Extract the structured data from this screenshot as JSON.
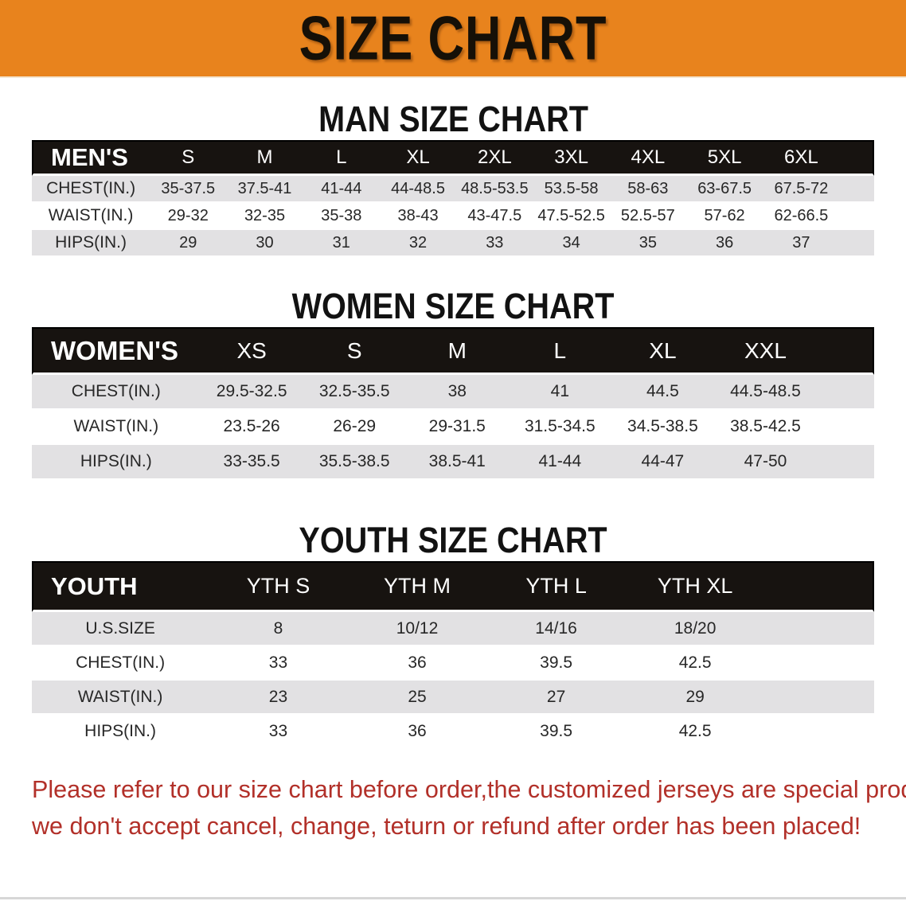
{
  "banner": {
    "title": "SIZE CHART",
    "bg_color": "#e8831d"
  },
  "colors": {
    "table_header_bg": "#171310",
    "row_stripe_gray": "#e2e1e3",
    "note_red": "#b23029"
  },
  "sections": [
    {
      "heading": "MAN SIZE CHART",
      "table": {
        "header_label": "MEN'S",
        "columns": [
          "S",
          "M",
          "L",
          "XL",
          "2XL",
          "3XL",
          "4XL",
          "5XL",
          "6XL"
        ],
        "rows": [
          {
            "label": "CHEST(IN.)",
            "values": [
              "35-37.5",
              "37.5-41",
              "41-44",
              "44-48.5",
              "48.5-53.5",
              "53.5-58",
              "58-63",
              "63-67.5",
              "67.5-72"
            ]
          },
          {
            "label": "WAIST(IN.)",
            "values": [
              "29-32",
              "32-35",
              "35-38",
              "38-43",
              "43-47.5",
              "47.5-52.5",
              "52.5-57",
              "57-62",
              "62-66.5"
            ]
          },
          {
            "label": "HIPS(IN.)",
            "values": [
              "29",
              "30",
              "31",
              "32",
              "33",
              "34",
              "35",
              "36",
              "37"
            ]
          }
        ]
      }
    },
    {
      "heading": "WOMEN SIZE CHART",
      "table": {
        "header_label": "WOMEN'S",
        "columns": [
          "XS",
          "S",
          "M",
          "L",
          "XL",
          "XXL"
        ],
        "rows": [
          {
            "label": "CHEST(IN.)",
            "values": [
              "29.5-32.5",
              "32.5-35.5",
              "38",
              "41",
              "44.5",
              "44.5-48.5"
            ]
          },
          {
            "label": "WAIST(IN.)",
            "values": [
              "23.5-26",
              "26-29",
              "29-31.5",
              "31.5-34.5",
              "34.5-38.5",
              "38.5-42.5"
            ]
          },
          {
            "label": "HIPS(IN.)",
            "values": [
              "33-35.5",
              "35.5-38.5",
              "38.5-41",
              "41-44",
              "44-47",
              "47-50"
            ]
          }
        ]
      }
    },
    {
      "heading": "YOUTH SIZE CHART",
      "table": {
        "header_label": "YOUTH",
        "columns": [
          "YTH S",
          "YTH M",
          "YTH L",
          "YTH XL"
        ],
        "rows": [
          {
            "label": "U.S.SIZE",
            "values": [
              "8",
              "10/12",
              "14/16",
              "18/20"
            ]
          },
          {
            "label": "CHEST(IN.)",
            "values": [
              "33",
              "36",
              "39.5",
              "42.5"
            ]
          },
          {
            "label": "WAIST(IN.)",
            "values": [
              "23",
              "25",
              "27",
              "29"
            ]
          },
          {
            "label": "HIPS(IN.)",
            "values": [
              "33",
              "36",
              "39.5",
              "42.5"
            ]
          }
        ]
      }
    }
  ],
  "note": {
    "line1": "Please refer to our size chart before order,the customized jerseys are special products,",
    "line2": "we don't accept cancel, change, teturn or refund after order has been placed!"
  }
}
